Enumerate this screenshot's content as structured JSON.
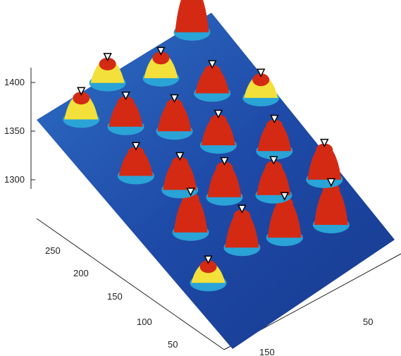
{
  "chart_data": {
    "type": "surface",
    "title": "",
    "xlabel": "",
    "ylabel": "",
    "zlabel": "",
    "grid": false,
    "colormap": "jet",
    "colors": {
      "low": "#1a3a8c",
      "mid_low": "#2aa3d6",
      "mid": "#f3e03a",
      "high": "#d42a14",
      "marker_edge": "#000000",
      "marker_fill": "#ffffff",
      "axis": "#222222"
    },
    "z_axis": {
      "ticks": [
        "1400",
        "1350",
        "1300"
      ],
      "range": [
        1265,
        1410
      ]
    },
    "y_axis": {
      "ticks": [
        "250",
        "200",
        "150",
        "100",
        "50"
      ],
      "range": [
        0,
        290
      ]
    },
    "x_axis": {
      "ticks": [
        "150",
        "50"
      ],
      "range": [
        0,
        200
      ]
    },
    "marker_symbol": "inverted-triangle",
    "peaks": [
      {
        "x": 155,
        "y": 40,
        "z": 1395
      },
      {
        "x": 110,
        "y": 55,
        "z": 1392
      },
      {
        "x": 70,
        "y": 70,
        "z": 1385
      },
      {
        "x": 130,
        "y": 95,
        "z": 1375
      },
      {
        "x": 40,
        "y": 110,
        "z": 1390
      },
      {
        "x": 90,
        "y": 120,
        "z": 1378
      },
      {
        "x": 160,
        "y": 130,
        "z": 1368
      },
      {
        "x": 60,
        "y": 150,
        "z": 1372
      },
      {
        "x": 120,
        "y": 165,
        "z": 1366
      },
      {
        "x": 35,
        "y": 185,
        "z": 1362
      },
      {
        "x": 95,
        "y": 200,
        "z": 1370
      },
      {
        "x": 150,
        "y": 210,
        "z": 1360
      },
      {
        "x": 60,
        "y": 230,
        "z": 1365
      },
      {
        "x": 120,
        "y": 250,
        "z": 1355
      },
      {
        "x": 30,
        "y": 260,
        "z": 1358
      },
      {
        "x": 180,
        "y": 80,
        "z": 1380
      },
      {
        "x": 185,
        "y": 180,
        "z": 1350
      },
      {
        "x": 20,
        "y": 60,
        "z": 1345
      },
      {
        "x": 75,
        "y": 275,
        "z": 1352
      },
      {
        "x": 175,
        "y": 270,
        "z": 1410
      }
    ]
  }
}
